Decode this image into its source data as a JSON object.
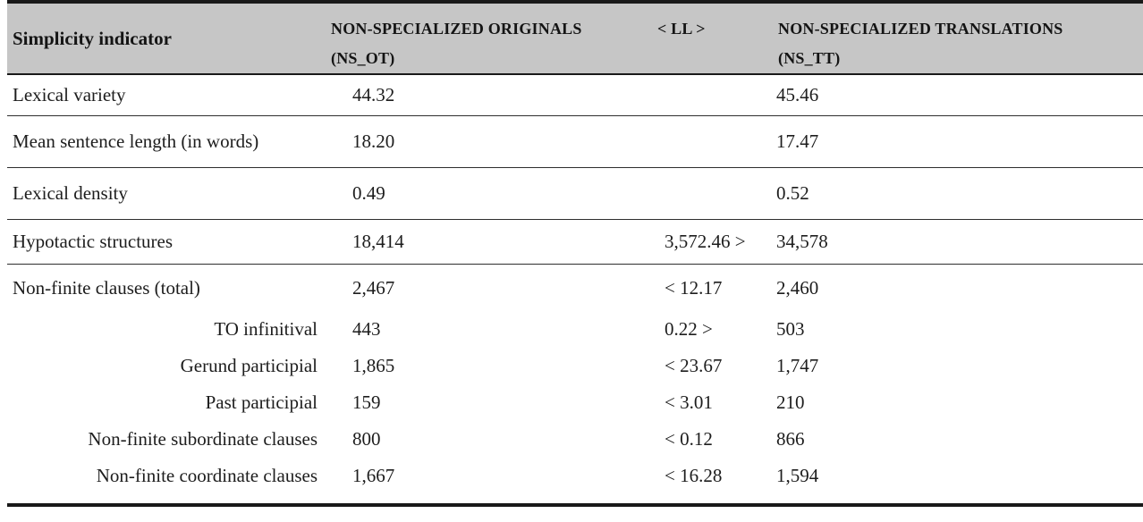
{
  "figure": {
    "kind": "academic-results-table",
    "topic": "Simplicity indicators compared across corpora"
  },
  "colors": {
    "header_background": "#c6c6c6",
    "rule_color": "#191919",
    "text_color": "#1d1d1d"
  },
  "table": {
    "header": {
      "indicator": "Simplicity indicator",
      "ns_ot_line1": "NON-SPECIALIZED ORIGINALS",
      "ns_ot_line2": "(NS_OT)",
      "ll": "< LL >",
      "ns_tt_line1": "NON-SPECIALIZED TRANSLATIONS",
      "ns_tt_line2": "(NS_TT)"
    },
    "rows": [
      {
        "indicator": "Lexical variety",
        "ns_ot": "44.32",
        "ll": "",
        "ns_tt": "45.46",
        "indent": false,
        "divider": true
      },
      {
        "indicator": "Mean sentence length (in words)",
        "ns_ot": "18.20",
        "ll": "",
        "ns_tt": "17.47",
        "indent": false,
        "divider": true
      },
      {
        "indicator": "Lexical density",
        "ns_ot": "0.49",
        "ll": "",
        "ns_tt": "0.52",
        "indent": false,
        "divider": true
      },
      {
        "indicator": "Hypotactic structures",
        "ns_ot": "18,414",
        "ll": "3,572.46 >",
        "ns_tt": "34,578",
        "indent": false,
        "divider": true
      },
      {
        "indicator": "Non-finite clauses (total)",
        "ns_ot": "2,467",
        "ll": "< 12.17",
        "ns_tt": "2,460",
        "indent": false,
        "divider": false
      },
      {
        "indicator": "TO infinitival",
        "ns_ot": "443",
        "ll": "0.22 >",
        "ns_tt": "503",
        "indent": true,
        "divider": false
      },
      {
        "indicator": "Gerund participial",
        "ns_ot": "1,865",
        "ll": "< 23.67",
        "ns_tt": "1,747",
        "indent": true,
        "divider": false
      },
      {
        "indicator": "Past participial",
        "ns_ot": "159",
        "ll": "< 3.01",
        "ns_tt": "210",
        "indent": true,
        "divider": false
      },
      {
        "indicator": "Non-finite subordinate clauses",
        "ns_ot": "800",
        "ll": "< 0.12",
        "ns_tt": "866",
        "indent": true,
        "divider": false
      },
      {
        "indicator": "Non-finite coordinate clauses",
        "ns_ot": "1,667",
        "ll": "< 16.28",
        "ns_tt": "1,594",
        "indent": true,
        "divider": false
      }
    ]
  }
}
